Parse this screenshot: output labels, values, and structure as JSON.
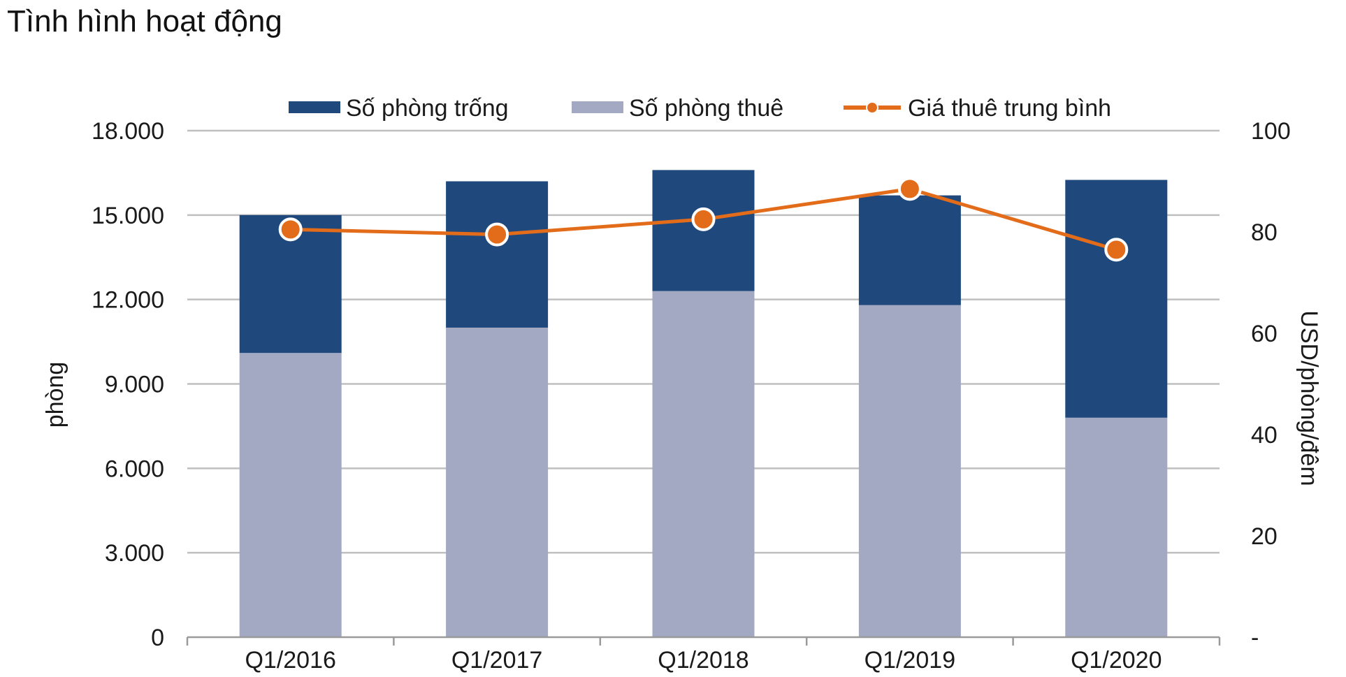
{
  "page_title": "Tình hình hoạt động",
  "chart_data": {
    "type": "bar",
    "stacked": true,
    "categories": [
      "Q1/2016",
      "Q1/2017",
      "Q1/2018",
      "Q1/2019",
      "Q1/2020"
    ],
    "series": [
      {
        "name": "Số phòng thuê",
        "kind": "bar",
        "axis": "left",
        "color": "#a3a8c3",
        "values": [
          10100,
          11000,
          12300,
          11800,
          7800
        ]
      },
      {
        "name": "Số phòng trống",
        "kind": "bar",
        "axis": "left",
        "color": "#1f497d",
        "values": [
          4900,
          5200,
          4300,
          3900,
          8450
        ]
      },
      {
        "name": "Giá thuê trung bình",
        "kind": "line",
        "axis": "right",
        "color": "#e36c1a",
        "values": [
          80.5,
          79.5,
          82.5,
          88.5,
          76.5
        ]
      }
    ],
    "legend_order": [
      "Số phòng trống",
      "Số phòng thuê",
      "Giá thuê trung bình"
    ],
    "legend_position": "top",
    "y_left": {
      "label": "phòng",
      "min": 0,
      "max": 18000,
      "ticks": [
        0,
        3000,
        6000,
        9000,
        12000,
        15000,
        18000
      ],
      "tick_labels": [
        "0",
        "3.000",
        "6.000",
        "9.000",
        "12.000",
        "15.000",
        "18.000"
      ]
    },
    "y_right": {
      "label": "USD/phòng/đêm",
      "min": 0,
      "max": 100,
      "ticks": [
        0,
        20,
        40,
        60,
        80,
        100
      ],
      "tick_labels": [
        "-",
        "20",
        "40",
        "60",
        "80",
        "100"
      ]
    },
    "grid": true,
    "grid_color": "#bfbfbf"
  }
}
